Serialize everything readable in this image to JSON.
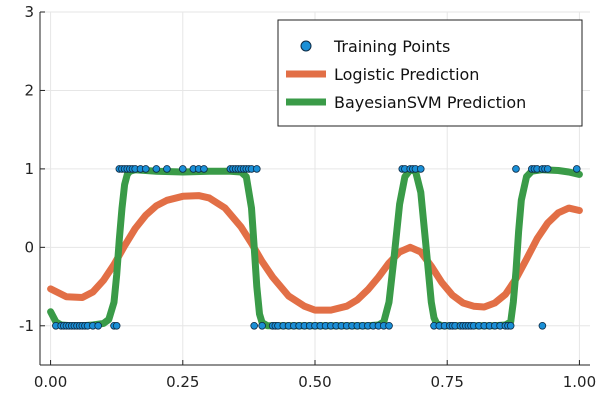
{
  "chart_data": {
    "type": "line",
    "title": "",
    "xlabel": "",
    "ylabel": "",
    "xlim": [
      -0.02,
      1.02
    ],
    "ylim": [
      -1.5,
      3
    ],
    "xticks": [
      {
        "value": 0.0,
        "label": "0.00"
      },
      {
        "value": 0.25,
        "label": "0.25"
      },
      {
        "value": 0.5,
        "label": "0.50"
      },
      {
        "value": 0.75,
        "label": "0.75"
      },
      {
        "value": 1.0,
        "label": "1.00"
      }
    ],
    "yticks": [
      {
        "value": -1,
        "label": "-1"
      },
      {
        "value": 0,
        "label": "0"
      },
      {
        "value": 1,
        "label": "1"
      },
      {
        "value": 2,
        "label": "2"
      },
      {
        "value": 3,
        "label": "3"
      }
    ],
    "grid": true,
    "legend_position": "top-right",
    "series": [
      {
        "name": "Training Points",
        "kind": "scatter",
        "color": "#1a8fd6",
        "points": [
          [
            0.01,
            -1
          ],
          [
            0.02,
            -1
          ],
          [
            0.025,
            -1
          ],
          [
            0.03,
            -1
          ],
          [
            0.035,
            -1
          ],
          [
            0.04,
            -1
          ],
          [
            0.045,
            -1
          ],
          [
            0.05,
            -1
          ],
          [
            0.055,
            -1
          ],
          [
            0.06,
            -1
          ],
          [
            0.065,
            -1
          ],
          [
            0.07,
            -1
          ],
          [
            0.08,
            -1
          ],
          [
            0.09,
            -1
          ],
          [
            0.12,
            -1
          ],
          [
            0.125,
            -1
          ],
          [
            0.13,
            1
          ],
          [
            0.135,
            1
          ],
          [
            0.14,
            1
          ],
          [
            0.145,
            1
          ],
          [
            0.15,
            1
          ],
          [
            0.155,
            1
          ],
          [
            0.16,
            1
          ],
          [
            0.17,
            1
          ],
          [
            0.18,
            1
          ],
          [
            0.2,
            1
          ],
          [
            0.22,
            1
          ],
          [
            0.25,
            1
          ],
          [
            0.27,
            1
          ],
          [
            0.28,
            1
          ],
          [
            0.29,
            1
          ],
          [
            0.34,
            1
          ],
          [
            0.345,
            1
          ],
          [
            0.35,
            1
          ],
          [
            0.355,
            1
          ],
          [
            0.36,
            1
          ],
          [
            0.365,
            1
          ],
          [
            0.37,
            1
          ],
          [
            0.375,
            1
          ],
          [
            0.38,
            1
          ],
          [
            0.39,
            1
          ],
          [
            0.385,
            -1
          ],
          [
            0.4,
            -1
          ],
          [
            0.42,
            -1
          ],
          [
            0.425,
            -1
          ],
          [
            0.43,
            -1
          ],
          [
            0.44,
            -1
          ],
          [
            0.45,
            -1
          ],
          [
            0.46,
            -1
          ],
          [
            0.47,
            -1
          ],
          [
            0.48,
            -1
          ],
          [
            0.49,
            -1
          ],
          [
            0.5,
            -1
          ],
          [
            0.51,
            -1
          ],
          [
            0.52,
            -1
          ],
          [
            0.53,
            -1
          ],
          [
            0.54,
            -1
          ],
          [
            0.55,
            -1
          ],
          [
            0.56,
            -1
          ],
          [
            0.57,
            -1
          ],
          [
            0.58,
            -1
          ],
          [
            0.59,
            -1
          ],
          [
            0.6,
            -1
          ],
          [
            0.61,
            -1
          ],
          [
            0.62,
            -1
          ],
          [
            0.63,
            -1
          ],
          [
            0.64,
            -1
          ],
          [
            0.665,
            1
          ],
          [
            0.67,
            1
          ],
          [
            0.68,
            1
          ],
          [
            0.685,
            1
          ],
          [
            0.69,
            1
          ],
          [
            0.7,
            1
          ],
          [
            0.725,
            -1
          ],
          [
            0.735,
            -1
          ],
          [
            0.745,
            -1
          ],
          [
            0.755,
            -1
          ],
          [
            0.76,
            -1
          ],
          [
            0.765,
            -1
          ],
          [
            0.775,
            -1
          ],
          [
            0.78,
            -1
          ],
          [
            0.785,
            -1
          ],
          [
            0.79,
            -1
          ],
          [
            0.795,
            -1
          ],
          [
            0.8,
            -1
          ],
          [
            0.81,
            -1
          ],
          [
            0.82,
            -1
          ],
          [
            0.83,
            -1
          ],
          [
            0.84,
            -1
          ],
          [
            0.85,
            -1
          ],
          [
            0.86,
            -1
          ],
          [
            0.865,
            -1
          ],
          [
            0.87,
            -1
          ],
          [
            0.88,
            1
          ],
          [
            0.91,
            1
          ],
          [
            0.915,
            1
          ],
          [
            0.92,
            1
          ],
          [
            0.93,
            1
          ],
          [
            0.935,
            1
          ],
          [
            0.94,
            1
          ],
          [
            0.93,
            -1
          ],
          [
            0.995,
            1
          ]
        ]
      },
      {
        "name": "Logistic Prediction",
        "kind": "line",
        "color": "#e26f46",
        "x": [
          0.0,
          0.03,
          0.06,
          0.08,
          0.1,
          0.12,
          0.14,
          0.16,
          0.18,
          0.2,
          0.22,
          0.25,
          0.28,
          0.3,
          0.33,
          0.36,
          0.38,
          0.4,
          0.42,
          0.45,
          0.48,
          0.5,
          0.53,
          0.56,
          0.58,
          0.6,
          0.62,
          0.64,
          0.66,
          0.68,
          0.7,
          0.72,
          0.74,
          0.76,
          0.78,
          0.8,
          0.82,
          0.84,
          0.86,
          0.88,
          0.9,
          0.92,
          0.94,
          0.96,
          0.98,
          1.0
        ],
        "y": [
          -0.53,
          -0.63,
          -0.64,
          -0.57,
          -0.42,
          -0.22,
          0.02,
          0.24,
          0.41,
          0.53,
          0.6,
          0.65,
          0.66,
          0.63,
          0.5,
          0.26,
          0.05,
          -0.18,
          -0.38,
          -0.62,
          -0.75,
          -0.8,
          -0.8,
          -0.75,
          -0.67,
          -0.54,
          -0.38,
          -0.2,
          -0.06,
          0.0,
          -0.06,
          -0.24,
          -0.45,
          -0.61,
          -0.71,
          -0.75,
          -0.76,
          -0.71,
          -0.6,
          -0.4,
          -0.15,
          0.11,
          0.31,
          0.44,
          0.5,
          0.47
        ]
      },
      {
        "name": "BayesianSVM Prediction",
        "kind": "line",
        "color": "#3a9b48",
        "x": [
          0.0,
          0.01,
          0.02,
          0.04,
          0.06,
          0.08,
          0.1,
          0.11,
          0.12,
          0.125,
          0.13,
          0.135,
          0.14,
          0.145,
          0.15,
          0.16,
          0.18,
          0.2,
          0.25,
          0.3,
          0.34,
          0.36,
          0.37,
          0.38,
          0.385,
          0.39,
          0.395,
          0.4,
          0.41,
          0.42,
          0.45,
          0.5,
          0.55,
          0.6,
          0.62,
          0.63,
          0.64,
          0.65,
          0.66,
          0.67,
          0.68,
          0.69,
          0.7,
          0.71,
          0.72,
          0.725,
          0.73,
          0.74,
          0.76,
          0.8,
          0.84,
          0.86,
          0.87,
          0.875,
          0.88,
          0.885,
          0.89,
          0.9,
          0.91,
          0.93,
          0.96,
          0.98,
          1.0
        ],
        "y": [
          -0.82,
          -0.95,
          -0.99,
          -1.0,
          -1.0,
          -0.99,
          -0.97,
          -0.92,
          -0.7,
          -0.35,
          0.1,
          0.5,
          0.8,
          0.93,
          0.97,
          0.99,
          0.98,
          0.97,
          0.96,
          0.97,
          0.97,
          0.96,
          0.9,
          0.5,
          0.0,
          -0.5,
          -0.85,
          -0.96,
          -1.0,
          -1.0,
          -1.0,
          -1.0,
          -1.0,
          -1.0,
          -0.99,
          -0.95,
          -0.7,
          -0.1,
          0.55,
          0.9,
          0.99,
          0.97,
          0.7,
          0.0,
          -0.7,
          -0.9,
          -0.97,
          -1.0,
          -1.0,
          -1.0,
          -1.0,
          -0.99,
          -0.95,
          -0.7,
          -0.3,
          0.2,
          0.6,
          0.9,
          0.97,
          0.99,
          0.98,
          0.96,
          0.93
        ]
      }
    ]
  }
}
